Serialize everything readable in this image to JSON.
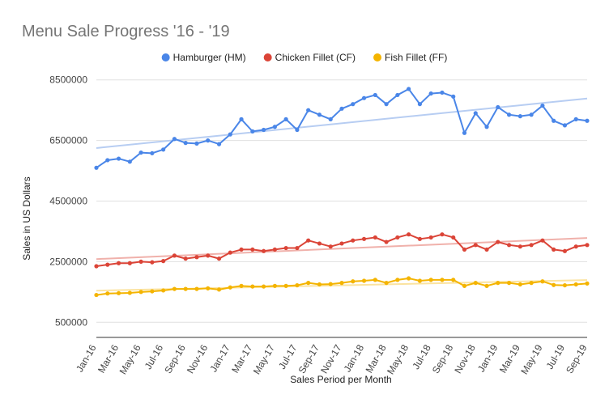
{
  "chart_data": {
    "type": "line",
    "title": "Menu Sale Progress '16 - '19",
    "xlabel": "Sales Period per Month",
    "ylabel": "Sales in US Dollars",
    "ylim": [
      0,
      9000000
    ],
    "y_ticks": [
      500000,
      2500000,
      4500000,
      6500000,
      8500000
    ],
    "y_tick_labels": [
      "500000",
      "2500000",
      "4500000",
      "6500000",
      "8500000"
    ],
    "x_tick_labels": [
      "Jan-16",
      "Mar-16",
      "May-16",
      "Jul-16",
      "Sep-16",
      "Nov-16",
      "Jan-17",
      "Mar-17",
      "May-17",
      "Jul-17",
      "Sep-17",
      "Nov-17",
      "Jan-18",
      "Mar-18",
      "May-18",
      "Jul-18",
      "Sep-18",
      "Nov-18",
      "Jan-19",
      "Mar-19",
      "May-19",
      "Jul-19",
      "Sep-19"
    ],
    "legend_position": "top",
    "grid": true,
    "trendlines": true,
    "categories": [
      "Jan-16",
      "Feb-16",
      "Mar-16",
      "Apr-16",
      "May-16",
      "Jun-16",
      "Jul-16",
      "Aug-16",
      "Sep-16",
      "Oct-16",
      "Nov-16",
      "Dec-16",
      "Jan-17",
      "Feb-17",
      "Mar-17",
      "Apr-17",
      "May-17",
      "Jun-17",
      "Jul-17",
      "Aug-17",
      "Sep-17",
      "Oct-17",
      "Nov-17",
      "Dec-17",
      "Jan-18",
      "Feb-18",
      "Mar-18",
      "Apr-18",
      "May-18",
      "Jun-18",
      "Jul-18",
      "Aug-18",
      "Sep-18",
      "Oct-18",
      "Nov-18",
      "Dec-18",
      "Jan-19",
      "Feb-19",
      "Mar-19",
      "Apr-19",
      "May-19",
      "Jun-19",
      "Jul-19",
      "Aug-19",
      "Sep-19"
    ],
    "series": [
      {
        "name": "Hamburger (HM)",
        "color": "#4a86e8",
        "trend_color": "#b7cdf2",
        "values": [
          5600000,
          5850000,
          5900000,
          5800000,
          6100000,
          6080000,
          6200000,
          6550000,
          6420000,
          6400000,
          6500000,
          6380000,
          6700000,
          7200000,
          6800000,
          6850000,
          6950000,
          7200000,
          6850000,
          7500000,
          7350000,
          7200000,
          7550000,
          7700000,
          7900000,
          8000000,
          7700000,
          8000000,
          8200000,
          7700000,
          8050000,
          8080000,
          7950000,
          6750000,
          7400000,
          6950000,
          7600000,
          7350000,
          7300000,
          7350000,
          7650000,
          7150000,
          7000000,
          7200000,
          7150000
        ]
      },
      {
        "name": "Chicken Fillet (CF)",
        "color": "#db4437",
        "trend_color": "#f0b1ab",
        "values": [
          2350000,
          2400000,
          2450000,
          2450000,
          2500000,
          2480000,
          2520000,
          2700000,
          2600000,
          2650000,
          2700000,
          2600000,
          2800000,
          2900000,
          2900000,
          2850000,
          2900000,
          2950000,
          2950000,
          3200000,
          3100000,
          3000000,
          3100000,
          3200000,
          3250000,
          3300000,
          3150000,
          3300000,
          3400000,
          3250000,
          3300000,
          3400000,
          3300000,
          2900000,
          3050000,
          2900000,
          3150000,
          3050000,
          3000000,
          3050000,
          3200000,
          2900000,
          2850000,
          3000000,
          3050000
        ]
      },
      {
        "name": "Fish Fillet (FF)",
        "color": "#f4b400",
        "trend_color": "#fbe3a0",
        "values": [
          1400000,
          1450000,
          1460000,
          1470000,
          1500000,
          1520000,
          1550000,
          1600000,
          1600000,
          1600000,
          1620000,
          1580000,
          1650000,
          1700000,
          1680000,
          1680000,
          1700000,
          1700000,
          1720000,
          1800000,
          1750000,
          1760000,
          1800000,
          1850000,
          1870000,
          1900000,
          1800000,
          1900000,
          1950000,
          1870000,
          1900000,
          1900000,
          1900000,
          1700000,
          1800000,
          1700000,
          1800000,
          1800000,
          1750000,
          1800000,
          1850000,
          1730000,
          1720000,
          1750000,
          1780000
        ]
      }
    ]
  }
}
